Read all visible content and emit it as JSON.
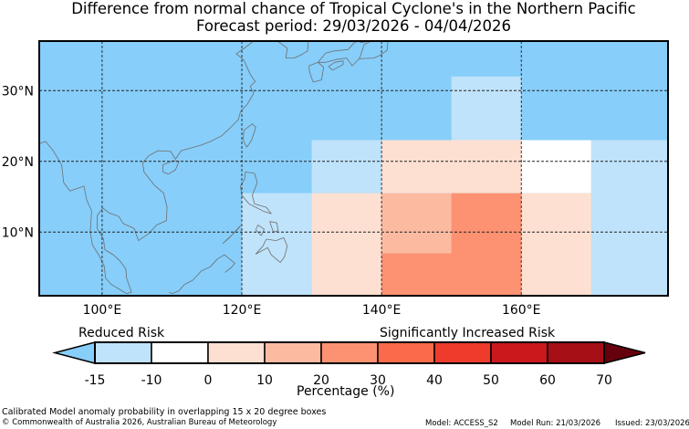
{
  "title": "Difference from normal chance of Tropical Cyclone's in the Northern Pacific",
  "forecast_period": "Forecast period: 29/03/2026 - 04/04/2026",
  "map": {
    "lon_range": [
      91,
      181
    ],
    "lat_range": [
      1,
      37
    ],
    "lon_ticks": [
      {
        "value": 100,
        "label": "100°E"
      },
      {
        "value": 120,
        "label": "120°E"
      },
      {
        "value": 140,
        "label": "140°E"
      },
      {
        "value": 160,
        "label": "160°E"
      }
    ],
    "lat_ticks": [
      {
        "value": 30,
        "label": "30°N"
      },
      {
        "value": 20,
        "label": "20°N"
      },
      {
        "value": 10,
        "label": "10°N"
      }
    ],
    "background_color": "#87cefa",
    "cells": [
      {
        "lon0": 150,
        "lon1": 160,
        "lat0": 23,
        "lat1": 32,
        "color": "#bfe3fb",
        "value": "-15 to -10"
      },
      {
        "lon0": 130,
        "lon1": 140,
        "lat0": 15.5,
        "lat1": 23,
        "color": "#bfe3fb",
        "value": "-15 to -10"
      },
      {
        "lon0": 170,
        "lon1": 181,
        "lat0": 1,
        "lat1": 23,
        "color": "#bfe3fb",
        "value": "-15 to -10"
      },
      {
        "lon0": 120,
        "lon1": 130,
        "lat0": 1,
        "lat1": 15.5,
        "color": "#bfe3fb",
        "value": "-15 to -10"
      },
      {
        "lon0": 160,
        "lon1": 170,
        "lat0": 15.5,
        "lat1": 23,
        "color": "#ffffff",
        "value": "-10 to 0"
      },
      {
        "lon0": 140,
        "lon1": 160,
        "lat0": 15.5,
        "lat1": 23,
        "color": "#fee0d2",
        "value": "0 to 10"
      },
      {
        "lon0": 130,
        "lon1": 140,
        "lat0": 1,
        "lat1": 15.5,
        "color": "#fee0d2",
        "value": "0 to 10"
      },
      {
        "lon0": 160,
        "lon1": 170,
        "lat0": 1,
        "lat1": 15.5,
        "color": "#fee0d2",
        "value": "0 to 10"
      },
      {
        "lon0": 140,
        "lon1": 150,
        "lat0": 7,
        "lat1": 15.5,
        "color": "#fcbba1",
        "value": "10 to 20"
      },
      {
        "lon0": 150,
        "lon1": 160,
        "lat0": 7,
        "lat1": 15.5,
        "color": "#fc9272",
        "value": "20 to 30"
      },
      {
        "lon0": 140,
        "lon1": 160,
        "lat0": 1,
        "lat1": 7,
        "color": "#fc9272",
        "value": "20 to 30"
      }
    ]
  },
  "colorbar": {
    "reduced_label": "Reduced Risk",
    "increased_label": "Significantly Increased Risk",
    "axis_label": "Percentage (%)",
    "tick_labels": [
      "-15",
      "-10",
      "0",
      "10",
      "20",
      "30",
      "40",
      "50",
      "60",
      "70"
    ],
    "under_color": "#87cefa",
    "over_color": "#67000d",
    "colors": [
      "#bfe3fb",
      "#ffffff",
      "#fee0d2",
      "#fcbba1",
      "#fc9272",
      "#fb6a4a",
      "#ef3b2c",
      "#cb181d",
      "#a50f15"
    ]
  },
  "footer": {
    "description": "Calibrated Model anomaly probability in overlapping 15 x 20 degree boxes",
    "copyright": "© Commonwealth of Australia 2026, Australian Bureau of Meteorology",
    "model": "Model: ACCESS_S2",
    "model_run": "Model Run: 21/03/2026",
    "issued": "Issued: 23/03/2026"
  }
}
